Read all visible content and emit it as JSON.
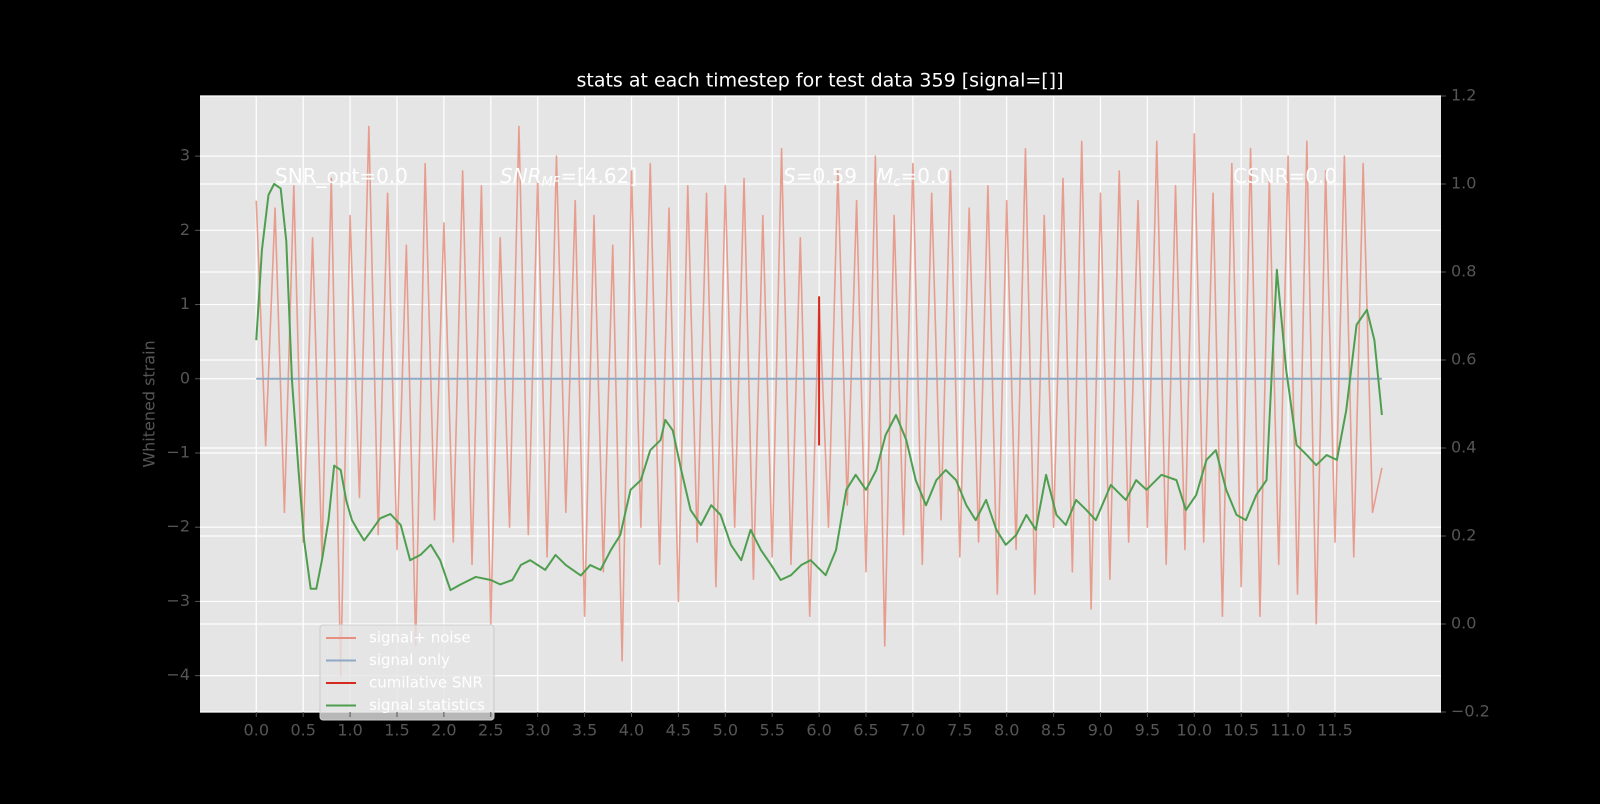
{
  "chart_data": {
    "type": "line",
    "title": "stats at each timestep for test data 359 [signal=[]]",
    "ylabel": "Whitened strain",
    "xlim": [
      -0.6,
      12.63
    ],
    "ylim": [
      -4.49,
      3.81
    ],
    "y2lim": [
      -0.2,
      1.2
    ],
    "xticks": [
      {
        "value": 0,
        "label": "0.0"
      },
      0.5,
      {
        "value": 1,
        "label": "1.0"
      },
      1.5,
      {
        "value": 2,
        "label": "2.0"
      },
      2.5,
      {
        "value": 3,
        "label": "3.0"
      },
      3.5,
      {
        "value": 4,
        "label": "4.0"
      },
      4.5,
      {
        "value": 5,
        "label": "5.0"
      },
      5.5,
      {
        "value": 6,
        "label": "6.0"
      },
      6.5,
      {
        "value": 7,
        "label": "7.0"
      },
      7.5,
      {
        "value": 8,
        "label": "8.0"
      },
      8.5,
      {
        "value": 9,
        "label": "9.0"
      },
      9.5,
      {
        "value": 10,
        "label": "10.0"
      },
      10.5,
      {
        "value": 11,
        "label": "11.0"
      },
      11.5
    ],
    "yticks": [
      {
        "value": -4,
        "label": "−4"
      },
      {
        "value": -3,
        "label": "−3"
      },
      {
        "value": -2,
        "label": "−2"
      },
      {
        "value": -1,
        "label": "−1"
      },
      0,
      1,
      2,
      3
    ],
    "y2ticks": [
      {
        "value": -0.2,
        "label": "−0.2"
      },
      {
        "value": 0,
        "label": "0.0"
      },
      0.2,
      0.4,
      0.6,
      0.8,
      {
        "value": 1,
        "label": "1.0"
      },
      1.2
    ],
    "grid": true,
    "legend": "lower left",
    "annotations": [
      [
        {
          "t": "SNR_opt=0.0"
        }
      ],
      [
        {
          "t": "SNR",
          "style": "italic"
        },
        {
          "t": "MF",
          "style": "sub"
        },
        {
          "t": "=[4.62]"
        }
      ],
      [
        {
          "t": "S",
          "style": "italic"
        },
        {
          "t": "=0.59   "
        },
        {
          "t": "M",
          "style": "italic"
        },
        {
          "t": "c",
          "style": "sub"
        },
        {
          "t": "=0.0"
        }
      ],
      [
        {
          "t": "CSNR=0.0"
        }
      ]
    ],
    "series": [
      {
        "name": "signal+ noise",
        "color": "#e8907f",
        "x": [
          0,
          0.1,
          0.2,
          0.3,
          0.4,
          0.5,
          0.6,
          0.7,
          0.8,
          0.9,
          1,
          1.1,
          1.2,
          1.3,
          1.4,
          1.5,
          1.6,
          1.7,
          1.8,
          1.9,
          2,
          2.1,
          2.2,
          2.3,
          2.4,
          2.5,
          2.6,
          2.7,
          2.8,
          2.9,
          3,
          3.1,
          3.2,
          3.3,
          3.4,
          3.5,
          3.6,
          3.7,
          3.8,
          3.9,
          4,
          4.1,
          4.2,
          4.3,
          4.4,
          4.5,
          4.6,
          4.7,
          4.8,
          4.9,
          5,
          5.1,
          5.2,
          5.3,
          5.4,
          5.5,
          5.6,
          5.7,
          5.8,
          5.9,
          6,
          6.1,
          6.2,
          6.3,
          6.4,
          6.5,
          6.6,
          6.7,
          6.8,
          6.9,
          7,
          7.1,
          7.2,
          7.3,
          7.4,
          7.5,
          7.6,
          7.7,
          7.8,
          7.9,
          8,
          8.1,
          8.2,
          8.3,
          8.4,
          8.5,
          8.6,
          8.7,
          8.8,
          8.9,
          9,
          9.1,
          9.2,
          9.3,
          9.4,
          9.5,
          9.6,
          9.7,
          9.8,
          9.9,
          10,
          10.1,
          10.2,
          10.3,
          10.4,
          10.5,
          10.6,
          10.7,
          10.8,
          10.9,
          11,
          11.1,
          11.2,
          11.3,
          11.4,
          11.5,
          11.6,
          11.7,
          11.8,
          11.9,
          12
        ],
        "values": [
          2.4,
          -0.9,
          2.3,
          -1.8,
          2.6,
          -2.2,
          1.9,
          -2.4,
          2.7,
          -4.0,
          2.2,
          -1.6,
          3.4,
          -2.1,
          2.5,
          -2.3,
          1.8,
          -3.6,
          2.9,
          -1.9,
          2.1,
          -2.2,
          2.8,
          -2.5,
          2.6,
          -3.3,
          1.9,
          -2.0,
          3.4,
          -2.1,
          2.7,
          -2.4,
          3.0,
          -1.8,
          2.4,
          -3.2,
          2.2,
          -2.6,
          1.8,
          -3.8,
          2.8,
          -2.0,
          2.9,
          -2.5,
          2.3,
          -3.0,
          2.6,
          -2.2,
          2.5,
          -2.8,
          2.6,
          -2.0,
          2.7,
          -2.7,
          2.2,
          -2.4,
          3.1,
          -2.5,
          1.9,
          -3.2,
          1.1,
          -2.0,
          2.8,
          -1.7,
          2.4,
          -2.6,
          3.0,
          -3.6,
          2.2,
          -2.1,
          2.9,
          -2.5,
          2.5,
          -1.9,
          2.8,
          -2.4,
          2.3,
          -2.2,
          2.6,
          -2.9,
          2.4,
          -2.3,
          3.1,
          -2.9,
          2.2,
          -2.0,
          2.7,
          -2.6,
          3.2,
          -3.1,
          2.5,
          -2.7,
          2.8,
          -2.2,
          2.4,
          -2.0,
          3.2,
          -2.5,
          2.6,
          -2.3,
          3.3,
          -2.2,
          2.5,
          -3.2,
          2.9,
          -2.8,
          3.1,
          -3.2,
          2.7,
          -2.5,
          3.0,
          -2.9,
          3.2,
          -3.3,
          2.8,
          -2.2,
          3.0,
          -2.4,
          2.9,
          -1.8,
          -1.2
        ]
      },
      {
        "name": "signal only",
        "color": "#8fa9c4",
        "x": [
          0,
          12
        ],
        "values": [
          0,
          0
        ]
      },
      {
        "name": "cumilative SNR",
        "color": "#d62a1e",
        "x": [
          6,
          6,
          6
        ],
        "values": [
          -0.9,
          1.1,
          0
        ]
      },
      {
        "name": "signal statistics",
        "color": "#4f9e4f",
        "axis": "y2",
        "x": [
          0,
          0.06,
          0.13,
          0.19,
          0.26,
          0.32,
          0.38,
          0.45,
          0.51,
          0.58,
          0.64,
          0.7,
          0.77,
          0.83,
          0.9,
          0.96,
          1.02,
          1.09,
          1.15,
          1.22,
          1.32,
          1.43,
          1.54,
          1.64,
          1.75,
          1.86,
          1.96,
          2.07,
          2.18,
          2.34,
          2.5,
          2.6,
          2.73,
          2.82,
          2.92,
          3.08,
          3.19,
          3.3,
          3.46,
          3.56,
          3.67,
          3.78,
          3.88,
          3.99,
          4.1,
          4.2,
          4.31,
          4.36,
          4.44,
          4.53,
          4.63,
          4.74,
          4.85,
          4.95,
          5.06,
          5.17,
          5.27,
          5.38,
          5.49,
          5.59,
          5.7,
          5.81,
          5.91,
          6.07,
          6.18,
          6.29,
          6.39,
          6.5,
          6.61,
          6.71,
          6.82,
          6.93,
          7.03,
          7.14,
          7.25,
          7.35,
          7.46,
          7.57,
          7.67,
          7.78,
          7.89,
          7.99,
          8.1,
          8.21,
          8.31,
          8.42,
          8.53,
          8.63,
          8.74,
          8.85,
          8.95,
          9.11,
          9.27,
          9.38,
          9.49,
          9.65,
          9.81,
          9.91,
          10.02,
          10.13,
          10.23,
          10.34,
          10.45,
          10.55,
          10.66,
          10.77,
          10.88,
          10.98,
          11.09,
          11.2,
          11.3,
          11.41,
          11.52,
          11.62,
          11.73,
          11.84,
          11.92,
          12
        ],
        "values": [
          0.645,
          0.85,
          0.975,
          1.0,
          0.99,
          0.87,
          0.555,
          0.35,
          0.19,
          0.08,
          0.08,
          0.145,
          0.236,
          0.36,
          0.35,
          0.28,
          0.236,
          0.21,
          0.19,
          0.21,
          0.24,
          0.25,
          0.225,
          0.145,
          0.157,
          0.18,
          0.145,
          0.077,
          0.09,
          0.107,
          0.1,
          0.09,
          0.1,
          0.134,
          0.145,
          0.123,
          0.157,
          0.134,
          0.11,
          0.134,
          0.123,
          0.168,
          0.202,
          0.305,
          0.327,
          0.395,
          0.418,
          0.464,
          0.44,
          0.35,
          0.259,
          0.225,
          0.27,
          0.248,
          0.18,
          0.145,
          0.214,
          0.168,
          0.134,
          0.1,
          0.111,
          0.134,
          0.145,
          0.111,
          0.168,
          0.305,
          0.339,
          0.305,
          0.35,
          0.43,
          0.475,
          0.418,
          0.327,
          0.27,
          0.327,
          0.35,
          0.327,
          0.27,
          0.236,
          0.282,
          0.214,
          0.18,
          0.202,
          0.248,
          0.214,
          0.339,
          0.248,
          0.225,
          0.282,
          0.259,
          0.236,
          0.316,
          0.282,
          0.327,
          0.305,
          0.339,
          0.327,
          0.259,
          0.293,
          0.373,
          0.395,
          0.305,
          0.248,
          0.236,
          0.293,
          0.327,
          0.805,
          0.577,
          0.407,
          0.384,
          0.361,
          0.384,
          0.373,
          0.486,
          0.68,
          0.714,
          0.645,
          0.475
        ]
      }
    ]
  }
}
